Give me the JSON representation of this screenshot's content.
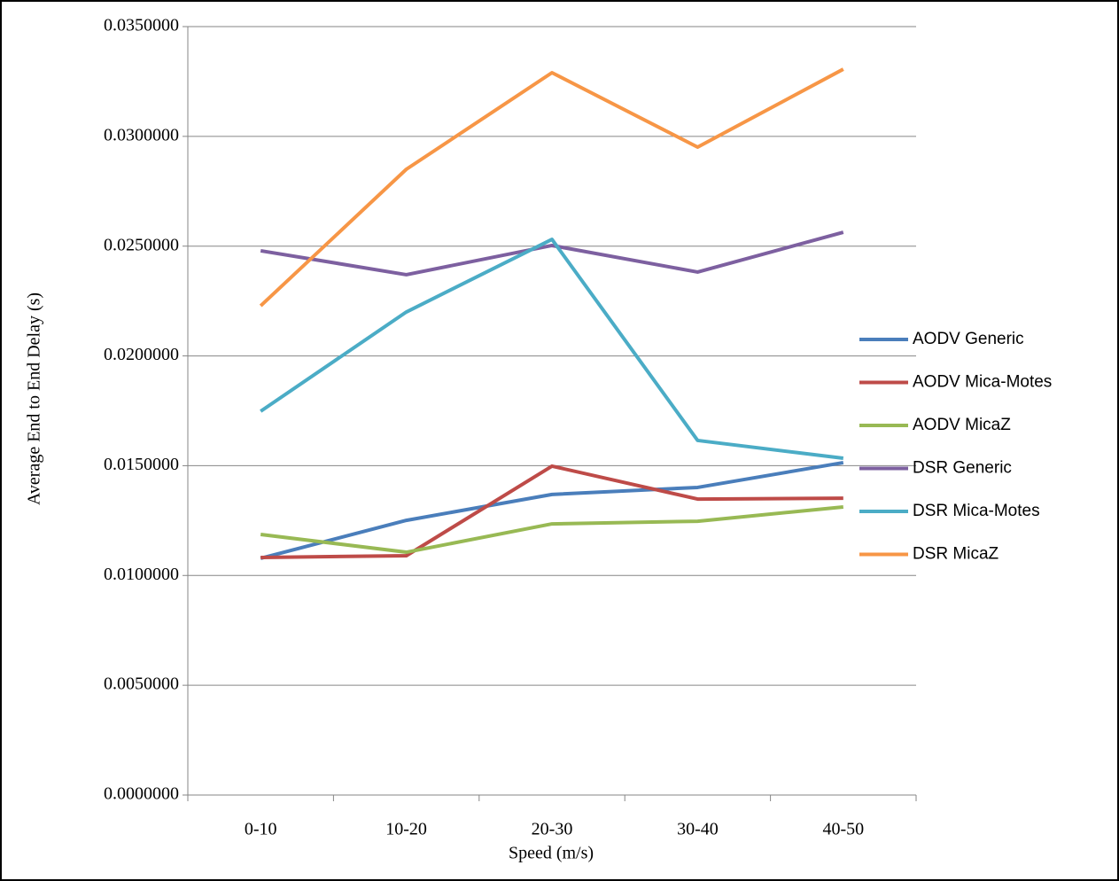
{
  "chart_data": {
    "type": "line",
    "x_label": "Speed (m/s)",
    "y_label": "Average End to End Delay  (s)",
    "categories": [
      "0-10",
      "10-20",
      "20-30",
      "30-40",
      "40-50"
    ],
    "series": [
      {
        "name": "AODV Generic",
        "color": "#4a7ebb",
        "values": [
          0.01078,
          0.01251,
          0.01369,
          0.01401,
          0.01514
        ]
      },
      {
        "name": "AODV Mica-Motes",
        "color": "#be4b48",
        "values": [
          0.01082,
          0.0109,
          0.01498,
          0.01348,
          0.01352
        ]
      },
      {
        "name": "AODV MicaZ",
        "color": "#98b954",
        "values": [
          0.01187,
          0.01106,
          0.01235,
          0.01247,
          0.01312
        ]
      },
      {
        "name": "DSR Generic",
        "color": "#7d60a0",
        "values": [
          0.02479,
          0.0237,
          0.02503,
          0.02382,
          0.02563
        ]
      },
      {
        "name": "DSR Mica-Motes",
        "color": "#4bacc6",
        "values": [
          0.01748,
          0.022,
          0.02531,
          0.01615,
          0.01534
        ]
      },
      {
        "name": "DSR MicaZ",
        "color": "#f79646",
        "values": [
          0.02228,
          0.0285,
          0.0329,
          0.02951,
          0.03306
        ]
      }
    ],
    "ylim": [
      0,
      0.035
    ],
    "yticks": [
      {
        "value": 0,
        "label": "0.0000000"
      },
      {
        "value": 0.005,
        "label": "0.0050000"
      },
      {
        "value": 0.01,
        "label": "0.0100000"
      },
      {
        "value": 0.015,
        "label": "0.0150000"
      },
      {
        "value": 0.02,
        "label": "0.0200000"
      },
      {
        "value": 0.025,
        "label": "0.0250000"
      },
      {
        "value": 0.03,
        "label": "0.0300000"
      },
      {
        "value": 0.035,
        "label": "0.0350000"
      }
    ],
    "grid": true,
    "legend": "right"
  }
}
